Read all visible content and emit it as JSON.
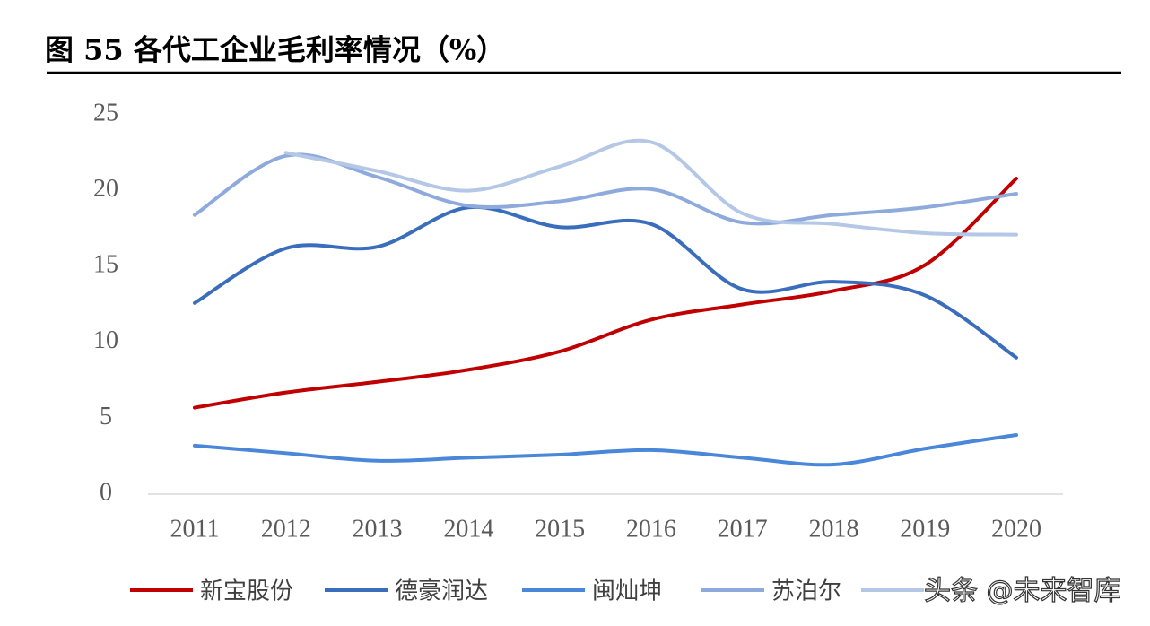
{
  "chart_data": {
    "type": "line",
    "title": "图 55   各代工企业毛利率情况（%）",
    "watermark": "头条 @未来智库",
    "categories": [
      "2011",
      "2012",
      "2013",
      "2014",
      "2015",
      "2016",
      "2017",
      "2018",
      "2019",
      "2020"
    ],
    "ylim": [
      0,
      25
    ],
    "yticks": [
      0,
      5,
      10,
      15,
      20,
      25
    ],
    "smooth": true,
    "series": [
      {
        "name": "新宝股份",
        "color": "#c00000",
        "values": [
          5.7,
          6.7,
          7.4,
          8.2,
          9.4,
          11.5,
          12.5,
          13.4,
          15.1,
          20.8
        ]
      },
      {
        "name": "德豪润达",
        "color": "#3a6ebd",
        "values": [
          12.6,
          16.2,
          16.3,
          18.9,
          17.6,
          17.8,
          13.5,
          14.0,
          13.1,
          9.0
        ]
      },
      {
        "name": "闽灿坤",
        "color": "#4a87d8",
        "values": [
          3.2,
          2.7,
          2.2,
          2.4,
          2.6,
          2.9,
          2.4,
          1.95,
          3.0,
          3.9
        ]
      },
      {
        "name": "苏泊尔",
        "color": "#8eaadc",
        "values": [
          18.4,
          22.3,
          20.9,
          19.0,
          19.3,
          20.1,
          17.9,
          18.4,
          18.9,
          19.8
        ]
      },
      {
        "color": "#b4c7e7",
        "values": [
          null,
          22.5,
          21.3,
          20.0,
          21.6,
          23.2,
          18.5,
          17.8,
          17.2,
          17.1
        ]
      }
    ]
  }
}
